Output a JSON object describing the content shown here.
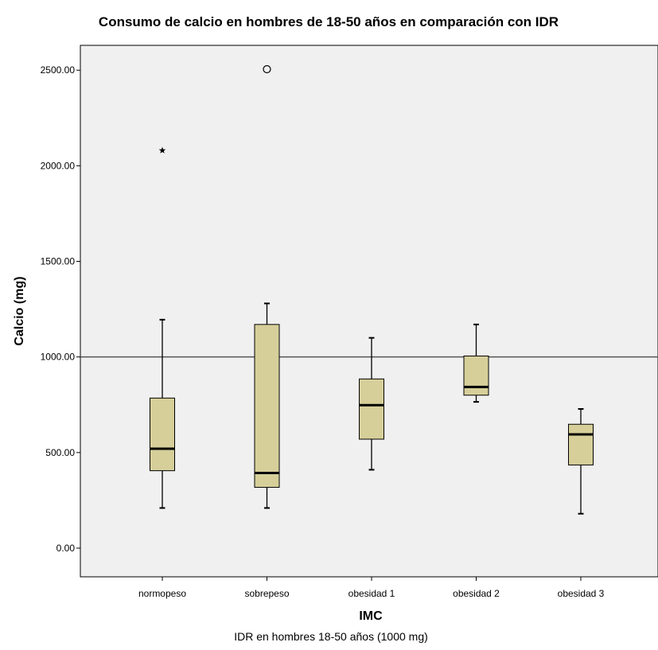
{
  "chart_data": {
    "type": "boxplot",
    "title": "Consumo de calcio en hombres de 18-50 años en comparación con IDR",
    "xlabel": "IMC",
    "ylabel": "Calcio (mg)",
    "footnote": "IDR en hombres 18-50 años (1000 mg)",
    "ylim": [
      -150,
      2630
    ],
    "yticks": [
      0,
      500,
      1000,
      1500,
      2000,
      2500
    ],
    "ytick_labels": [
      "0.00",
      "500.00",
      "1000.00",
      "1500.00",
      "2000.00",
      "2500.00"
    ],
    "categories": [
      "normopeso",
      "sobrepeso",
      "obesidad 1",
      "obesidad 2",
      "obesidad 3"
    ],
    "boxes": [
      {
        "category": "normopeso",
        "min": 210,
        "q1": 405,
        "median": 520,
        "q3": 785,
        "max": 1195
      },
      {
        "category": "sobrepeso",
        "min": 210,
        "q1": 318,
        "median": 393,
        "q3": 1170,
        "max": 1280
      },
      {
        "category": "obesidad 1",
        "min": 410,
        "q1": 570,
        "median": 748,
        "q3": 885,
        "max": 1100
      },
      {
        "category": "obesidad 2",
        "min": 765,
        "q1": 800,
        "median": 843,
        "q3": 1005,
        "max": 1170
      },
      {
        "category": "obesidad 3",
        "min": 180,
        "q1": 435,
        "median": 595,
        "q3": 648,
        "max": 728
      }
    ],
    "outliers": [
      {
        "category": "normopeso",
        "value": 2080,
        "marker": "star"
      },
      {
        "category": "sobrepeso",
        "value": 2505,
        "marker": "circle"
      }
    ],
    "reference_line": {
      "value": 1000
    },
    "grid": false,
    "colors": {
      "plot_background": "#f0f0f0",
      "box_fill": "#d6cf9a",
      "line": "#000000",
      "reference_line": "#555555"
    }
  }
}
